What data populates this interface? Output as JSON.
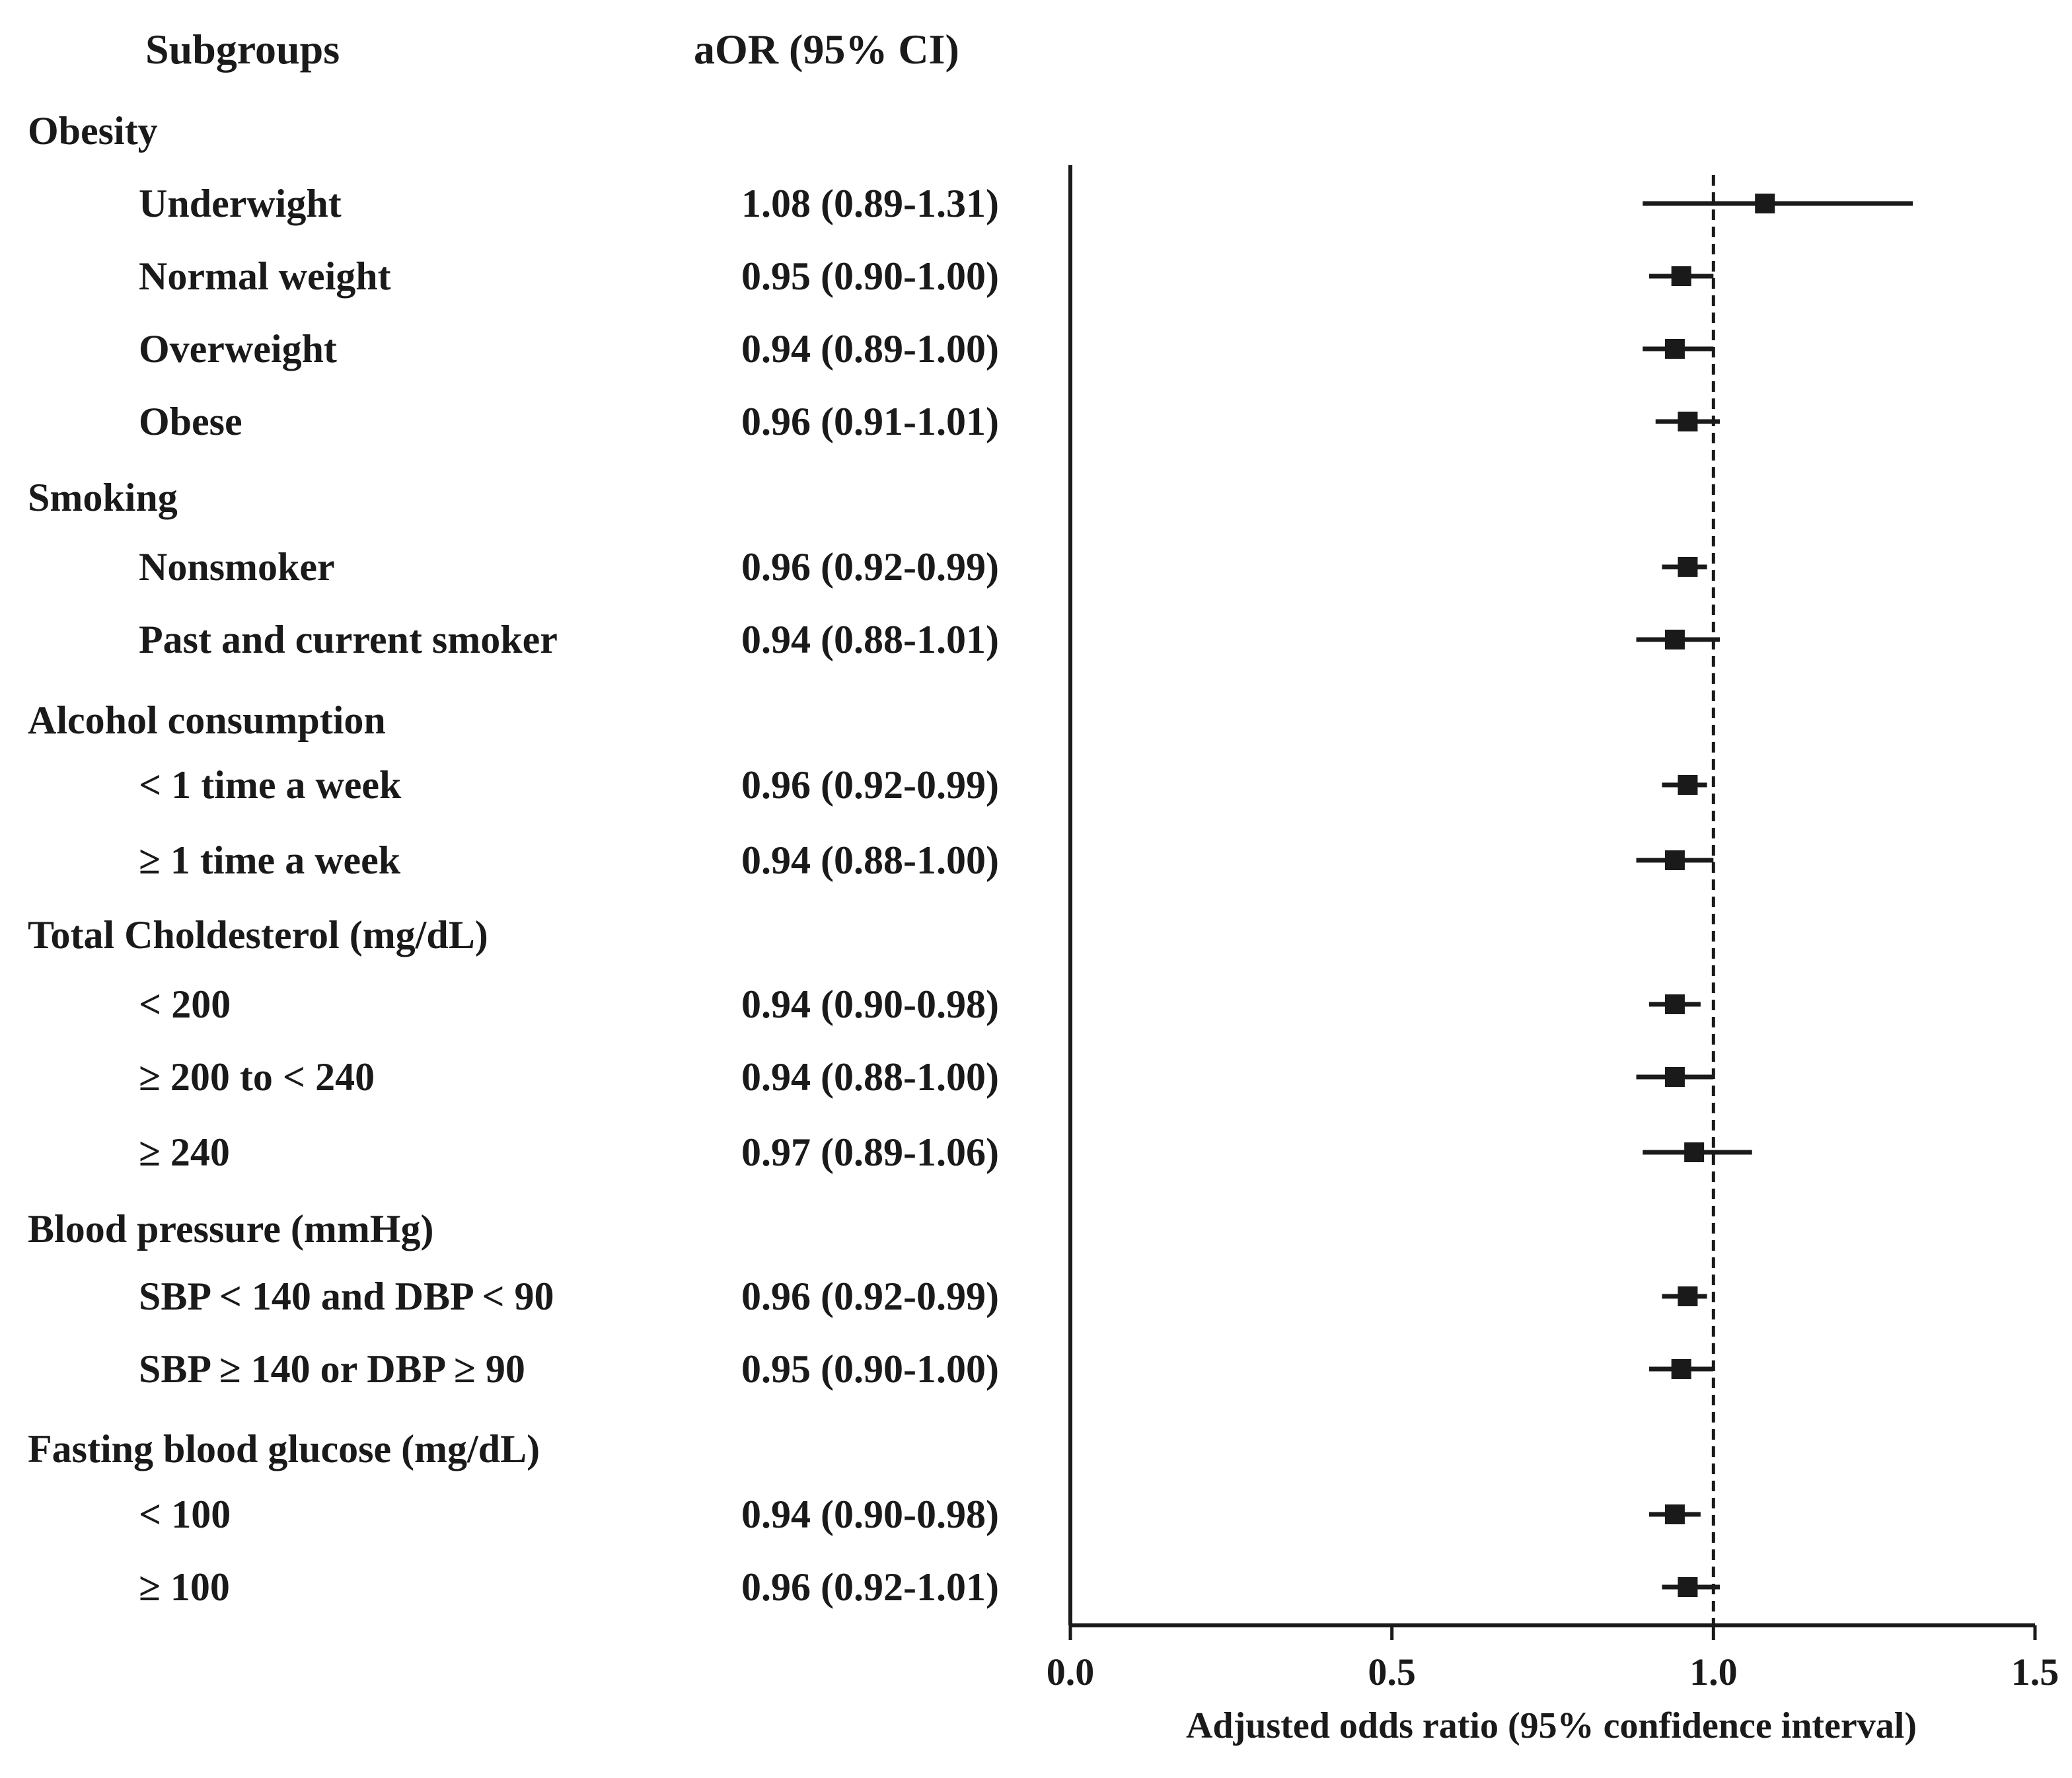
{
  "chart_data": {
    "type": "forest",
    "headers": {
      "subgroups": "Subgroups",
      "aor": "aOR (95% CI)"
    },
    "xlabel": "Adjusted odds ratio (95% confidence interval)",
    "xlim": [
      0.0,
      1.5
    ],
    "xticks": [
      "0.0",
      "0.5",
      "1.0",
      "1.5"
    ],
    "reference_line": 1.0,
    "groups": [
      {
        "label": "Obesity",
        "rows": [
          {
            "label": "Underwight",
            "aor_text": "1.08 (0.89-1.31)",
            "or": 1.08,
            "lo": 0.89,
            "hi": 1.31
          },
          {
            "label": "Normal weight",
            "aor_text": "0.95 (0.90-1.00)",
            "or": 0.95,
            "lo": 0.9,
            "hi": 1.0
          },
          {
            "label": "Overweight",
            "aor_text": "0.94 (0.89-1.00)",
            "or": 0.94,
            "lo": 0.89,
            "hi": 1.0
          },
          {
            "label": "Obese",
            "aor_text": "0.96 (0.91-1.01)",
            "or": 0.96,
            "lo": 0.91,
            "hi": 1.01
          }
        ]
      },
      {
        "label": "Smoking",
        "rows": [
          {
            "label": "Nonsmoker",
            "aor_text": "0.96 (0.92-0.99)",
            "or": 0.96,
            "lo": 0.92,
            "hi": 0.99
          },
          {
            "label": "Past and current smoker",
            "aor_text": "0.94 (0.88-1.01)",
            "or": 0.94,
            "lo": 0.88,
            "hi": 1.01
          }
        ]
      },
      {
        "label": "Alcohol consumption",
        "rows": [
          {
            "label": "< 1 time a week",
            "aor_text": "0.96 (0.92-0.99)",
            "or": 0.96,
            "lo": 0.92,
            "hi": 0.99
          },
          {
            "label": "≥ 1 time a week",
            "aor_text": "0.94 (0.88-1.00)",
            "or": 0.94,
            "lo": 0.88,
            "hi": 1.0
          }
        ]
      },
      {
        "label": "Total Choldesterol (mg/dL)",
        "rows": [
          {
            "label": "< 200",
            "aor_text": "0.94 (0.90-0.98)",
            "or": 0.94,
            "lo": 0.9,
            "hi": 0.98
          },
          {
            "label": "≥ 200 to < 240",
            "aor_text": "0.94 (0.88-1.00)",
            "or": 0.94,
            "lo": 0.88,
            "hi": 1.0
          },
          {
            "label": "≥ 240",
            "aor_text": "0.97 (0.89-1.06)",
            "or": 0.97,
            "lo": 0.89,
            "hi": 1.06
          }
        ]
      },
      {
        "label": "Blood pressure (mmHg)",
        "rows": [
          {
            "label": "SBP < 140 and DBP < 90",
            "aor_text": "0.96 (0.92-0.99)",
            "or": 0.96,
            "lo": 0.92,
            "hi": 0.99
          },
          {
            "label": "SBP ≥ 140 or DBP ≥ 90",
            "aor_text": "0.95 (0.90-1.00)",
            "or": 0.95,
            "lo": 0.9,
            "hi": 1.0
          }
        ]
      },
      {
        "label": "Fasting blood glucose (mg/dL)",
        "rows": [
          {
            "label": "< 100",
            "aor_text": "0.94 (0.90-0.98)",
            "or": 0.94,
            "lo": 0.9,
            "hi": 0.98
          },
          {
            "label": "≥ 100",
            "aor_text": "0.96 (0.92-1.01)",
            "or": 0.96,
            "lo": 0.92,
            "hi": 1.01
          }
        ]
      }
    ]
  }
}
